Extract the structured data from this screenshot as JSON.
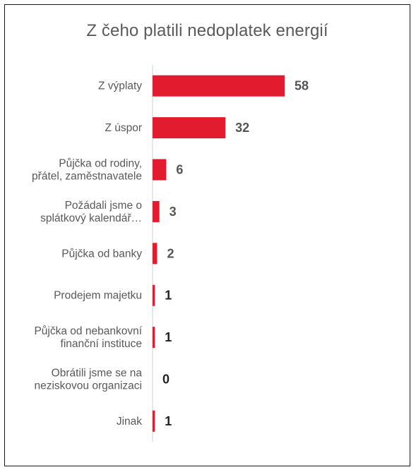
{
  "chart_data": {
    "type": "bar",
    "orientation": "horizontal",
    "title": "Z čeho platili nedoplatek energií",
    "categories": [
      [
        "Z výplaty"
      ],
      [
        "Z úspor"
      ],
      [
        "Půjčka od rodiny,",
        "přátel, zaměstnavatele"
      ],
      [
        "Požádali jsme o",
        "splátkový kalendář…"
      ],
      [
        "Půjčka od banky"
      ],
      [
        "Prodejem majetku"
      ],
      [
        "Půjčka od nebankovní",
        "finanční instituce"
      ],
      [
        "Obrátili jsme se na",
        "neziskovou organizaci"
      ],
      [
        "Jinak"
      ]
    ],
    "values": [
      58,
      32,
      6,
      3,
      2,
      1,
      1,
      0,
      1
    ],
    "value_labels": [
      "58",
      "32",
      "6",
      "3",
      "2",
      "1",
      "1",
      "0",
      "1"
    ],
    "xlim": [
      0,
      58
    ],
    "grid": false,
    "legend": "none",
    "colors": {
      "bar": "#e31b2e",
      "title": "#5a5a5a",
      "category_label": "#595959",
      "value_label_dark": "#222222",
      "value_label": "#555555",
      "axis": "#d0d0d0"
    }
  }
}
